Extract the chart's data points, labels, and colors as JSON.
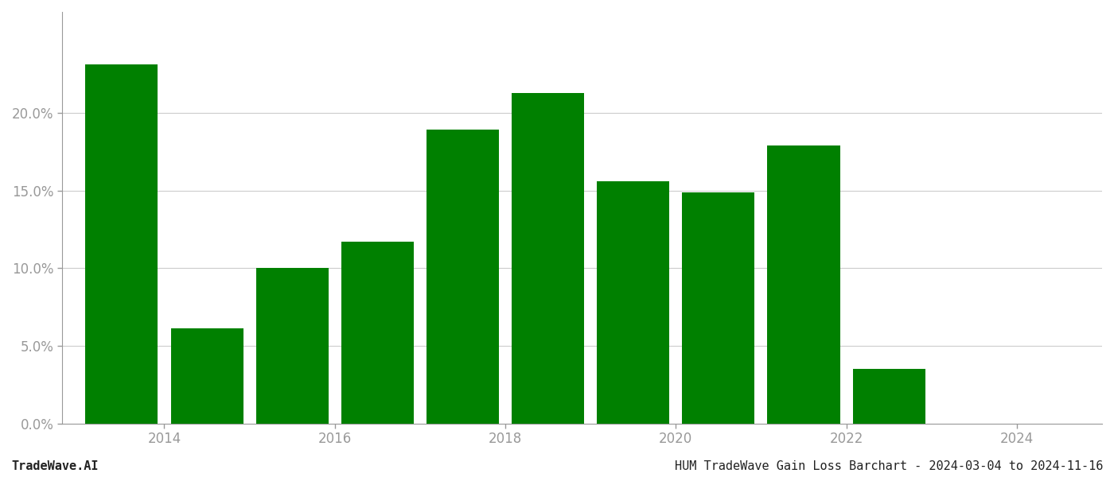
{
  "bar_positions": [
    2013.5,
    2014.5,
    2015.5,
    2016.5,
    2017.5,
    2018.5,
    2019.5,
    2020.5,
    2021.5,
    2022.5
  ],
  "values": [
    0.231,
    0.061,
    0.1,
    0.117,
    0.189,
    0.213,
    0.156,
    0.149,
    0.179,
    0.035
  ],
  "bar_color": "#008000",
  "background_color": "#ffffff",
  "ylim": [
    0,
    0.265
  ],
  "yticks": [
    0.0,
    0.05,
    0.1,
    0.15,
    0.2
  ],
  "xticks": [
    2014,
    2016,
    2018,
    2020,
    2022,
    2024
  ],
  "xlim": [
    2012.8,
    2025.0
  ],
  "grid_color": "#cccccc",
  "axis_color": "#999999",
  "tick_color": "#999999",
  "footer_left": "TradeWave.AI",
  "footer_right": "HUM TradeWave Gain Loss Barchart - 2024-03-04 to 2024-11-16",
  "footer_fontsize": 11,
  "bar_width": 0.85
}
